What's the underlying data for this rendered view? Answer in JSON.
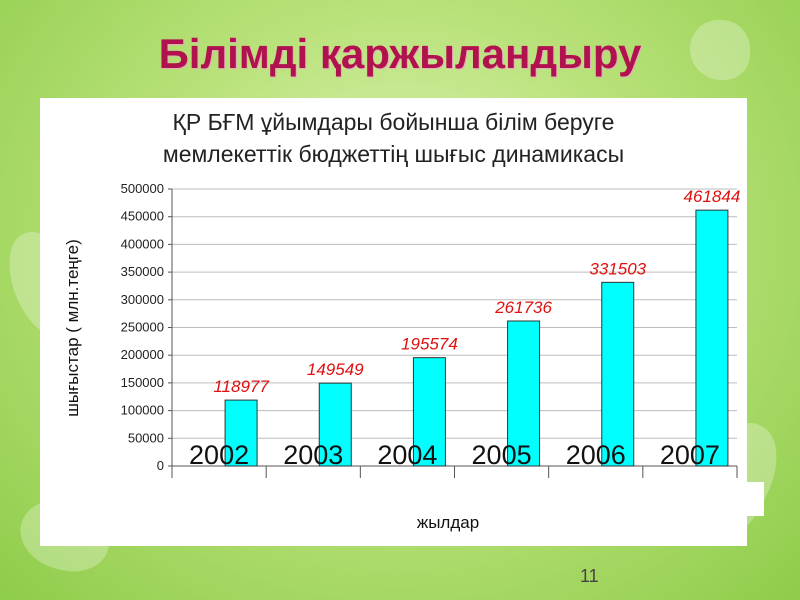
{
  "slide": {
    "title": "Білімді қаржыландыру",
    "page_number": "11"
  },
  "colors": {
    "title": "#b0124e",
    "bar": "#00ffff",
    "data_label": "#e01010",
    "background": "#a8d860"
  },
  "chart_data": {
    "type": "bar",
    "title_lines": [
      "ҚР БҒМ ұйымдары бойынша білім беруге",
      "мемлекеттік бюджеттің шығыс динамикасы"
    ],
    "categories": [
      "2002",
      "2003",
      "2004",
      "2005",
      "2006",
      "2007"
    ],
    "values": [
      118977,
      149549,
      195574,
      261736,
      331503,
      461844
    ],
    "data_labels": [
      "118977",
      "149549",
      "195574",
      "261736",
      "331503",
      "461844"
    ],
    "xlabel": "жылдар",
    "ylabel": "шығыстар ( млн.теңге)",
    "ylim": [
      0,
      500000
    ],
    "yticks": [
      "0",
      "50000",
      "100000",
      "150000",
      "200000",
      "250000",
      "300000",
      "350000",
      "400000",
      "450000",
      "500000"
    ],
    "grid": true,
    "legend": "none"
  }
}
